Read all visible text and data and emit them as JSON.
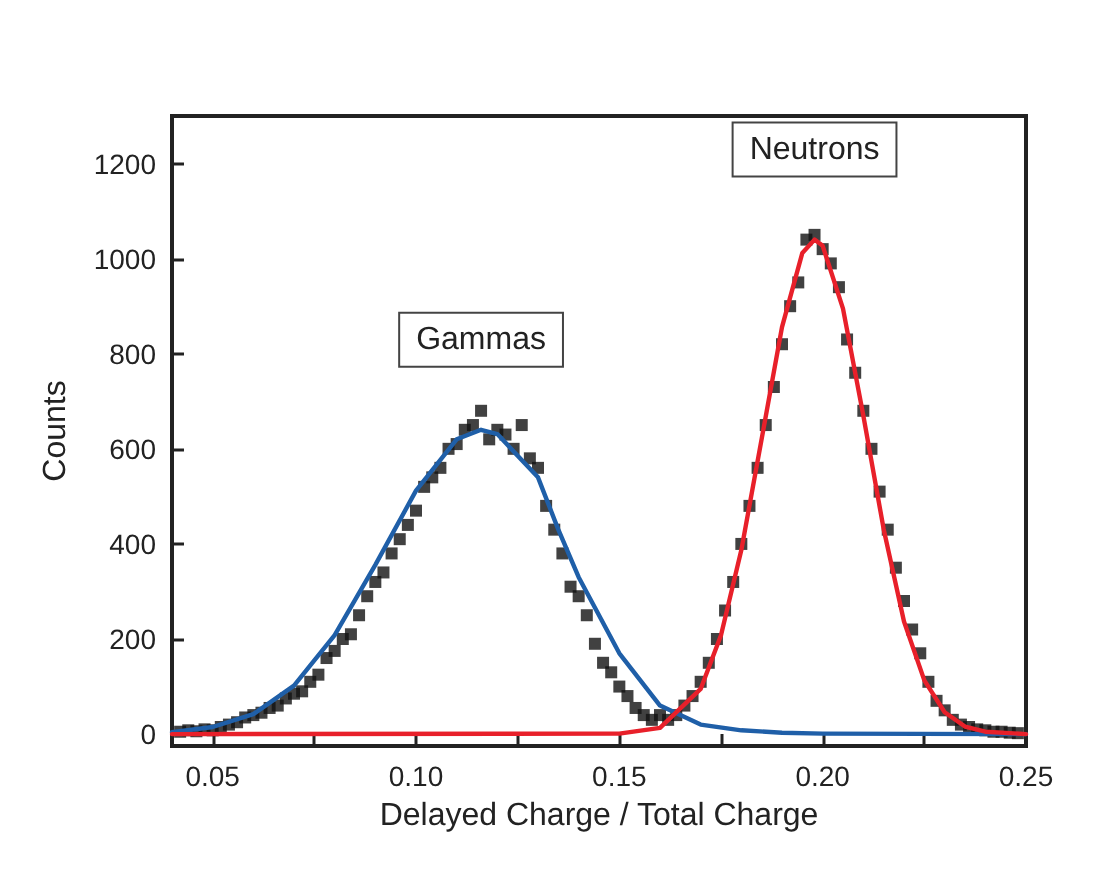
{
  "chart_data": {
    "type": "scatter",
    "xlabel": "Delayed Charge / Total Charge",
    "ylabel": "Counts",
    "xlim": [
      0.04,
      0.25
    ],
    "ylim": [
      -25,
      1300
    ],
    "xticks": [
      {
        "value": 0.05,
        "label": "0.05"
      },
      {
        "value": 0.075,
        "label": null
      },
      {
        "value": 0.1,
        "label": "0.10"
      },
      {
        "value": 0.125,
        "label": null
      },
      {
        "value": 0.15,
        "label": "0.15"
      },
      {
        "value": 0.175,
        "label": null
      },
      {
        "value": 0.2,
        "label": "0.20"
      },
      {
        "value": 0.225,
        "label": null
      },
      {
        "value": 0.25,
        "label": "0.25"
      }
    ],
    "yticks": [
      0,
      200,
      400,
      600,
      800,
      1000,
      1200
    ],
    "grid": false,
    "marker": "square",
    "annotations": [
      "Gammas",
      "Neutrons"
    ],
    "series": [
      {
        "color": "#111111",
        "x": [
          0.042,
          0.044,
          0.046,
          0.048,
          0.05,
          0.052,
          0.054,
          0.056,
          0.058,
          0.06,
          0.062,
          0.064,
          0.066,
          0.068,
          0.07,
          0.072,
          0.074,
          0.076,
          0.078,
          0.08,
          0.082,
          0.084,
          0.086,
          0.088,
          0.09,
          0.092,
          0.094,
          0.096,
          0.098,
          0.1,
          0.102,
          0.104,
          0.106,
          0.108,
          0.11,
          0.112,
          0.114,
          0.116,
          0.118,
          0.12,
          0.122,
          0.124,
          0.126,
          0.128,
          0.13,
          0.132,
          0.134,
          0.136,
          0.138,
          0.14,
          0.142,
          0.144,
          0.146,
          0.148,
          0.15,
          0.152,
          0.154,
          0.156,
          0.158,
          0.16,
          0.162,
          0.164,
          0.166,
          0.168,
          0.17,
          0.172,
          0.174,
          0.176,
          0.178,
          0.18,
          0.182,
          0.184,
          0.186,
          0.188,
          0.19,
          0.192,
          0.194,
          0.196,
          0.198,
          0.2,
          0.202,
          0.204,
          0.206,
          0.208,
          0.21,
          0.212,
          0.214,
          0.216,
          0.218,
          0.22,
          0.222,
          0.224,
          0.226,
          0.228,
          0.23,
          0.232,
          0.234,
          0.236,
          0.238,
          0.24,
          0.242,
          0.244,
          0.246,
          0.248
        ],
        "values": [
          5,
          8,
          6,
          10,
          8,
          15,
          20,
          25,
          35,
          40,
          45,
          55,
          60,
          75,
          85,
          90,
          110,
          125,
          160,
          175,
          200,
          210,
          250,
          290,
          320,
          340,
          380,
          410,
          440,
          470,
          520,
          540,
          560,
          600,
          610,
          640,
          650,
          680,
          620,
          640,
          630,
          600,
          650,
          580,
          560,
          480,
          430,
          380,
          310,
          290,
          250,
          190,
          150,
          130,
          100,
          80,
          55,
          40,
          30,
          40,
          30,
          40,
          60,
          80,
          110,
          150,
          200,
          260,
          320,
          400,
          480,
          560,
          650,
          730,
          820,
          900,
          950,
          1040,
          1050,
          1020,
          990,
          940,
          830,
          760,
          680,
          600,
          510,
          430,
          350,
          280,
          220,
          170,
          110,
          70,
          50,
          30,
          20,
          15,
          10,
          8,
          5,
          5,
          3,
          2
        ]
      },
      {
        "type": "line",
        "color": "#1f5fa8",
        "marker": "none",
        "line_style": "solid",
        "x": [
          0.04,
          0.05,
          0.06,
          0.07,
          0.08,
          0.09,
          0.1,
          0.11,
          0.116,
          0.12,
          0.13,
          0.135,
          0.14,
          0.15,
          0.16,
          0.17,
          0.18,
          0.19,
          0.2,
          0.25
        ],
        "values": [
          4,
          15,
          42,
          102,
          208,
          356,
          512,
          620,
          640,
          631,
          540,
          430,
          330,
          170,
          60,
          20,
          8,
          3,
          1,
          0
        ]
      },
      {
        "type": "line",
        "color": "#e8202a",
        "marker": "none",
        "line_style": "solid",
        "x": [
          0.04,
          0.15,
          0.16,
          0.17,
          0.175,
          0.18,
          0.185,
          0.19,
          0.195,
          0.198,
          0.2,
          0.205,
          0.21,
          0.215,
          0.22,
          0.225,
          0.23,
          0.235,
          0.24,
          0.25
        ],
        "values": [
          0,
          1,
          13,
          95,
          208,
          387,
          621,
          856,
          1012,
          1040,
          1027,
          895,
          670,
          431,
          237,
          113,
          46,
          16,
          5,
          0
        ]
      }
    ]
  }
}
